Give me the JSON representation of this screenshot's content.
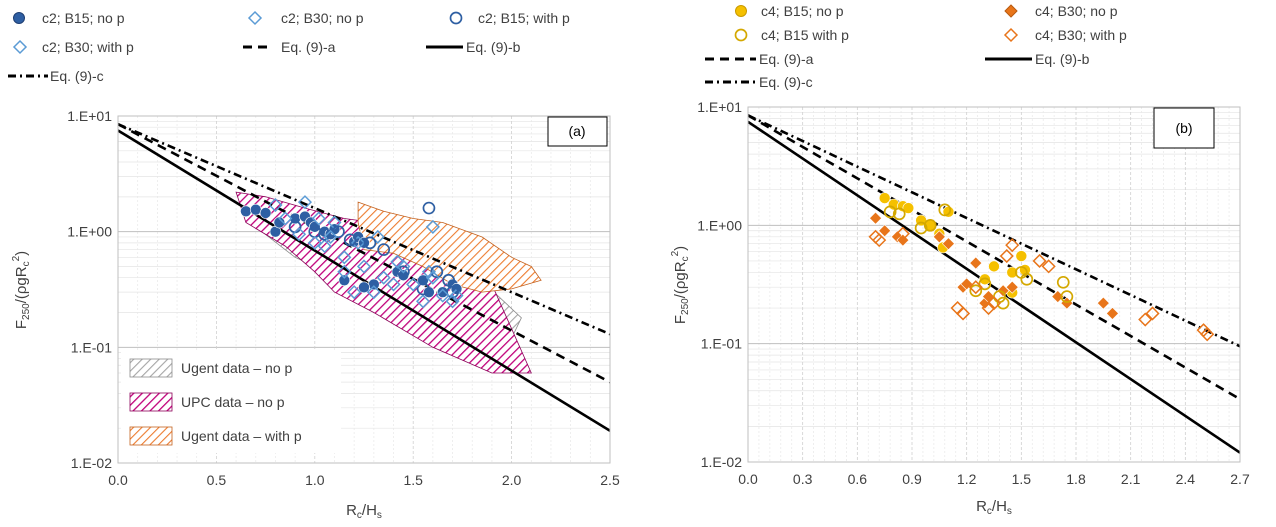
{
  "chart_data": [
    {
      "panel": "(a)",
      "type": "scatter",
      "xlabel_main": "R",
      "xlabel_sub1": "c",
      "xlabel_mid": "/H",
      "xlabel_sub2": "s",
      "ylabel_main": "F",
      "ylabel_sub1": "250",
      "ylabel_mid": "/(ρgR",
      "ylabel_sub2": "c",
      "ylabel_sup": "2",
      "ylabel_end": ")",
      "xlim": [
        0,
        2.5
      ],
      "ylim": [
        0.01,
        10
      ],
      "yscale": "log",
      "xticks": [
        0,
        0.5,
        1.0,
        1.5,
        2.0,
        2.5
      ],
      "xtick_labels": [
        "0.0",
        "0.5",
        "1.0",
        "1.5",
        "2.0",
        "2.5"
      ],
      "yticks": [
        0.01,
        0.1,
        1,
        10
      ],
      "ytick_labels": [
        "1.E-02",
        "1.E-01",
        "1.E+00",
        "1.E+01"
      ],
      "grid": true,
      "legend_items": [
        "c2; B15; no p",
        "c2; B30; no p",
        "c2; B15; with p",
        "c2; B30; with p",
        "Eq. (9)-a",
        "Eq. (9)-b",
        "Eq. (9)-c"
      ],
      "area_legend": [
        "Ugent data – no p",
        "UPC data – no p",
        "Ugent data – with p"
      ],
      "series": [
        {
          "name": "c2; B15; no p",
          "marker": "filled-circle",
          "color": "#2e5fa3",
          "x": [
            0.65,
            0.7,
            0.75,
            0.8,
            0.82,
            0.9,
            0.95,
            0.98,
            1.0,
            1.05,
            1.08,
            1.1,
            1.2,
            1.22,
            1.25,
            1.3,
            1.42,
            1.45,
            1.55,
            1.58,
            1.65,
            1.7,
            1.72,
            1.15,
            1.25
          ],
          "y": [
            1.5,
            1.55,
            1.45,
            1.0,
            1.2,
            1.3,
            1.35,
            1.2,
            1.1,
            1.0,
            0.95,
            1.05,
            0.82,
            0.9,
            0.8,
            0.35,
            0.45,
            0.42,
            0.38,
            0.3,
            0.3,
            0.35,
            0.32,
            0.38,
            0.33
          ]
        },
        {
          "name": "c2; B30; no p",
          "marker": "open-diamond",
          "color": "#5b9bd5",
          "x": [
            0.8,
            0.95,
            1.02,
            1.05,
            1.1,
            1.15,
            1.2,
            1.22,
            1.3,
            1.32,
            1.4,
            1.42,
            1.55,
            1.58,
            1.6,
            1.72
          ],
          "y": [
            1.7,
            1.8,
            1.3,
            0.75,
            1.2,
            0.45,
            0.3,
            0.8,
            0.3,
            0.9,
            0.35,
            0.55,
            0.25,
            0.45,
            1.1,
            0.28
          ]
        },
        {
          "name": "c2; B15; with p",
          "marker": "open-circle",
          "color": "#2e5fa3",
          "x": [
            0.9,
            1.0,
            1.05,
            1.12,
            1.18,
            1.28,
            1.35,
            1.45,
            1.55,
            1.58,
            1.62,
            1.68,
            1.7
          ],
          "y": [
            1.1,
            1.0,
            0.95,
            1.0,
            0.85,
            0.8,
            0.7,
            0.45,
            0.32,
            1.6,
            0.45,
            0.38,
            0.3
          ]
        },
        {
          "name": "c2; B30; with p",
          "marker": "open-diamond",
          "color": "#5b9bd5",
          "x": [
            0.85,
            0.92,
            1.0,
            1.08,
            1.15,
            1.25,
            1.35,
            1.45,
            1.5,
            1.6,
            1.65,
            1.7
          ],
          "y": [
            1.3,
            0.95,
            0.8,
            0.9,
            0.6,
            0.5,
            0.4,
            0.5,
            0.35,
            0.4,
            0.28,
            0.25
          ]
        }
      ],
      "lines": [
        {
          "name": "Eq. (9)-a",
          "style": "dashed",
          "x": [
            0,
            2.5
          ],
          "y": [
            8.5,
            0.05
          ]
        },
        {
          "name": "Eq. (9)-b",
          "style": "solid",
          "x": [
            0,
            2.5
          ],
          "y": [
            7.5,
            0.019
          ]
        },
        {
          "name": "Eq. (9)-c",
          "style": "dash-dot",
          "x": [
            0,
            2.5
          ],
          "y": [
            8.5,
            0.13
          ]
        }
      ],
      "areas": [
        {
          "name": "Ugent data – no p",
          "color": "#a6a6a6",
          "polygon": [
            [
              0.7,
              1.8
            ],
            [
              1.0,
              1.5
            ],
            [
              1.3,
              1.0
            ],
            [
              1.6,
              0.7
            ],
            [
              1.8,
              0.45
            ],
            [
              2.05,
              0.18
            ],
            [
              2.0,
              0.12
            ],
            [
              1.8,
              0.13
            ],
            [
              1.5,
              0.2
            ],
            [
              1.2,
              0.35
            ],
            [
              0.9,
              0.6
            ],
            [
              0.7,
              1.1
            ]
          ]
        },
        {
          "name": "UPC data – no p",
          "color": "#c0007a",
          "polygon": [
            [
              0.6,
              2.2
            ],
            [
              0.75,
              2.0
            ],
            [
              0.95,
              1.6
            ],
            [
              1.15,
              1.3
            ],
            [
              1.3,
              1.2
            ],
            [
              1.5,
              0.9
            ],
            [
              1.7,
              0.6
            ],
            [
              1.9,
              0.35
            ],
            [
              2.1,
              0.06
            ],
            [
              1.9,
              0.06
            ],
            [
              1.6,
              0.1
            ],
            [
              1.3,
              0.2
            ],
            [
              1.1,
              0.3
            ],
            [
              1.0,
              0.45
            ],
            [
              0.85,
              0.75
            ],
            [
              0.65,
              1.2
            ]
          ]
        },
        {
          "name": "Ugent data – with p",
          "color": "#ed7d31",
          "polygon": [
            [
              1.22,
              1.8
            ],
            [
              1.35,
              1.5
            ],
            [
              1.5,
              1.3
            ],
            [
              1.65,
              1.2
            ],
            [
              1.85,
              0.9
            ],
            [
              2.0,
              0.6
            ],
            [
              2.1,
              0.5
            ],
            [
              2.15,
              0.38
            ],
            [
              2.0,
              0.32
            ],
            [
              1.85,
              0.3
            ],
            [
              1.7,
              0.35
            ],
            [
              1.55,
              0.5
            ],
            [
              1.4,
              0.65
            ],
            [
              1.25,
              0.7
            ],
            [
              1.22,
              1.2
            ]
          ]
        }
      ]
    },
    {
      "panel": "(b)",
      "type": "scatter",
      "xlabel_main": "R",
      "xlabel_sub1": "c",
      "xlabel_mid": "/H",
      "xlabel_sub2": "s",
      "ylabel_main": "F",
      "ylabel_sub1": "250",
      "ylabel_mid": "/(ρgR",
      "ylabel_sub2": "c",
      "ylabel_sup": "2",
      "ylabel_end": ")",
      "xlim": [
        0,
        2.7
      ],
      "ylim": [
        0.01,
        10
      ],
      "yscale": "log",
      "xticks": [
        0,
        0.3,
        0.6,
        0.9,
        1.2,
        1.5,
        1.8,
        2.1,
        2.4,
        2.7
      ],
      "xtick_labels": [
        "0.0",
        "0.3",
        "0.6",
        "0.9",
        "1.2",
        "1.5",
        "1.8",
        "2.1",
        "2.4",
        "2.7"
      ],
      "yticks": [
        0.01,
        0.1,
        1,
        10
      ],
      "ytick_labels": [
        "1.E-02",
        "1.E-01",
        "1.E+00",
        "1.E+01"
      ],
      "grid": true,
      "legend_items": [
        "c4; B15; no p",
        "c4; B30; no p",
        "c4; B15 with p",
        "c4; B30; with p",
        "Eq. (9)-a",
        "Eq. (9)-b",
        "Eq. (9)-c"
      ],
      "series": [
        {
          "name": "c4; B15; no p",
          "marker": "filled-circle",
          "color": "#f5c000",
          "x": [
            0.75,
            0.8,
            0.85,
            0.88,
            0.95,
            1.0,
            1.05,
            1.07,
            1.1,
            1.3,
            1.35,
            1.45,
            1.5,
            1.52,
            1.45
          ],
          "y": [
            1.7,
            1.5,
            1.45,
            1.4,
            1.1,
            1.0,
            0.85,
            0.65,
            1.3,
            0.35,
            0.45,
            0.4,
            0.55,
            0.42,
            0.27
          ]
        },
        {
          "name": "c4; B30; no p",
          "marker": "filled-diamond",
          "color": "#e8751a",
          "x": [
            0.7,
            0.75,
            0.82,
            0.85,
            1.05,
            1.1,
            1.18,
            1.2,
            1.25,
            1.3,
            1.32,
            1.4,
            1.45,
            1.7,
            1.75,
            1.95,
            2.0
          ],
          "y": [
            1.15,
            0.9,
            0.8,
            0.75,
            0.8,
            0.7,
            0.3,
            0.32,
            0.48,
            0.22,
            0.25,
            0.28,
            0.3,
            0.25,
            0.22,
            0.22,
            0.18
          ]
        },
        {
          "name": "c4; B15 with p",
          "marker": "open-circle",
          "color": "#d4a800",
          "x": [
            0.78,
            0.83,
            0.95,
            1.0,
            1.08,
            1.25,
            1.3,
            1.38,
            1.4,
            1.5,
            1.53,
            1.73,
            1.75
          ],
          "y": [
            1.3,
            1.25,
            0.95,
            1.0,
            1.35,
            0.28,
            0.32,
            0.25,
            0.22,
            0.4,
            0.35,
            0.33,
            0.25
          ]
        },
        {
          "name": "c4; B30; with p",
          "marker": "open-diamond",
          "color": "#e8751a",
          "x": [
            0.7,
            0.72,
            0.85,
            1.15,
            1.18,
            1.25,
            1.32,
            1.35,
            1.42,
            1.45,
            1.6,
            1.65,
            2.18,
            2.22,
            2.5,
            2.52
          ],
          "y": [
            0.8,
            0.75,
            0.85,
            0.2,
            0.18,
            0.3,
            0.2,
            0.22,
            0.55,
            0.68,
            0.5,
            0.45,
            0.16,
            0.18,
            0.13,
            0.12
          ]
        }
      ],
      "lines": [
        {
          "name": "Eq. (9)-a",
          "style": "dashed",
          "x": [
            0,
            2.7
          ],
          "y": [
            8.5,
            0.034
          ]
        },
        {
          "name": "Eq. (9)-b",
          "style": "solid",
          "x": [
            0,
            2.7
          ],
          "y": [
            7.5,
            0.012
          ]
        },
        {
          "name": "Eq. (9)-c",
          "style": "dash-dot",
          "x": [
            0,
            2.7
          ],
          "y": [
            8.5,
            0.095
          ]
        }
      ]
    }
  ]
}
